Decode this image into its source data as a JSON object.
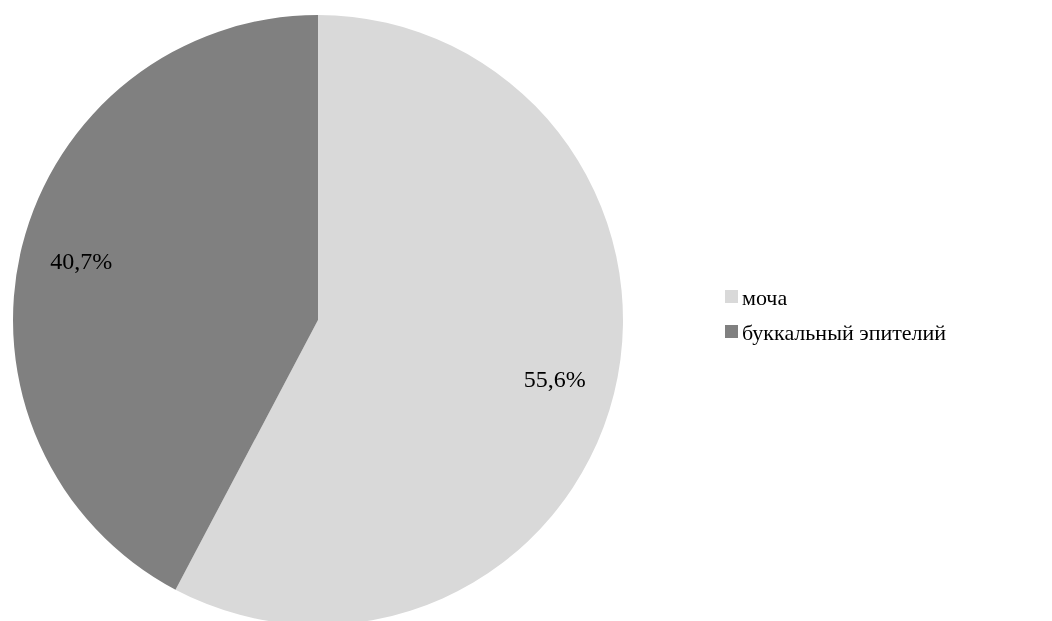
{
  "chart_data": {
    "type": "pie",
    "categories": [
      "моча",
      "буккальный эпителий"
    ],
    "values": [
      55.6,
      40.7
    ],
    "colors": [
      "#d9d9d9",
      "#808080"
    ],
    "value_labels": [
      "55,6%",
      "40,7%"
    ],
    "legend": "right"
  }
}
